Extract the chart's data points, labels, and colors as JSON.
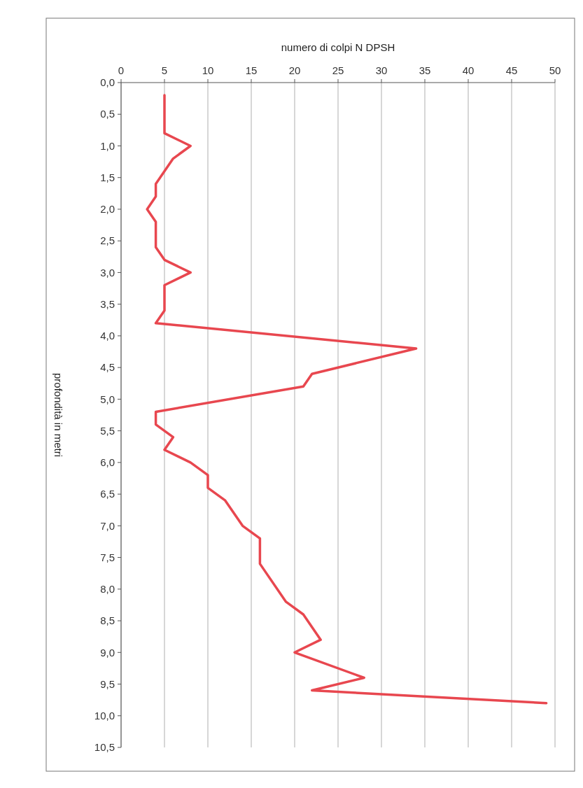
{
  "chart_data": {
    "type": "line",
    "xlabel": "numero di colpi N DPSH",
    "ylabel": "profondità in metri",
    "series": [
      {
        "color": "#e8474f",
        "x": [
          5,
          5,
          8,
          6,
          4,
          4,
          3,
          4,
          4,
          5,
          8,
          5,
          5,
          4,
          34,
          22,
          21,
          4,
          4,
          6,
          5,
          8,
          10,
          10,
          12,
          14,
          16,
          16,
          19,
          21,
          23,
          20,
          28,
          22,
          49
        ],
        "values": [
          0.2,
          0.8,
          1.0,
          1.2,
          1.6,
          1.8,
          2.0,
          2.2,
          2.6,
          2.8,
          3.0,
          3.2,
          3.6,
          3.8,
          4.2,
          4.6,
          4.8,
          5.2,
          5.4,
          5.6,
          5.8,
          6.0,
          6.2,
          6.4,
          6.6,
          7.0,
          7.2,
          7.6,
          8.2,
          8.4,
          8.8,
          9.0,
          9.4,
          9.6,
          9.8
        ]
      }
    ],
    "xlim": [
      0,
      50
    ],
    "xticks": [
      0,
      5,
      10,
      15,
      20,
      25,
      30,
      35,
      40,
      45,
      50
    ],
    "ylim": [
      10.5,
      0
    ],
    "yticks": [
      {
        "value": 0,
        "label": "0,0"
      },
      {
        "value": 0.5,
        "label": "0,5"
      },
      {
        "value": 1,
        "label": "1,0"
      },
      {
        "value": 1.5,
        "label": "1,5"
      },
      {
        "value": 2,
        "label": "2,0"
      },
      {
        "value": 2.5,
        "label": "2,5"
      },
      {
        "value": 3,
        "label": "3,0"
      },
      {
        "value": 3.5,
        "label": "3,5"
      },
      {
        "value": 4,
        "label": "4,0"
      },
      {
        "value": 4.5,
        "label": "4,5"
      },
      {
        "value": 5,
        "label": "5,0"
      },
      {
        "value": 5.5,
        "label": "5,5"
      },
      {
        "value": 6,
        "label": "6,0"
      },
      {
        "value": 6.5,
        "label": "6,5"
      },
      {
        "value": 7,
        "label": "7,0"
      },
      {
        "value": 7.5,
        "label": "7,5"
      },
      {
        "value": 8,
        "label": "8,0"
      },
      {
        "value": 8.5,
        "label": "8,5"
      },
      {
        "value": 9,
        "label": "9,0"
      },
      {
        "value": 9.5,
        "label": "9,5"
      },
      {
        "value": 10,
        "label": "10,0"
      },
      {
        "value": 10.5,
        "label": "10,5"
      }
    ],
    "grid": "x",
    "marker": "none",
    "line_style": "solid"
  }
}
